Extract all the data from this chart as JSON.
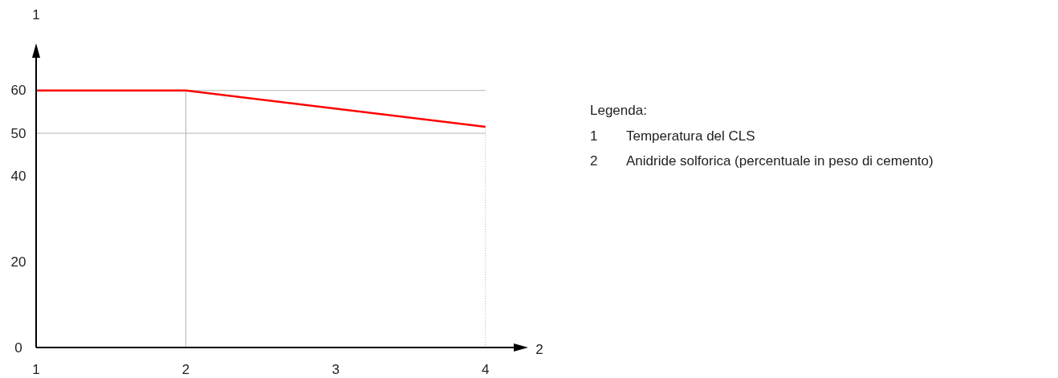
{
  "chart_data": {
    "type": "line",
    "xlabel": "2",
    "ylabel": "1",
    "x": [
      1,
      2,
      4
    ],
    "series": [
      {
        "color": "#ff0000",
        "values": [
          60,
          60,
          51.5
        ]
      }
    ],
    "xlim": [
      1,
      4.2
    ],
    "xticks": [
      1,
      2,
      3,
      4
    ],
    "ylim": [
      0,
      68
    ],
    "yticks": [
      0,
      20,
      40,
      50,
      60
    ],
    "ref_lines": [
      {
        "axis": "y",
        "value": 60,
        "color": "#b4b4b4"
      },
      {
        "axis": "y",
        "value": 50,
        "color": "#b4b4b4"
      },
      {
        "axis": "x",
        "value": 2,
        "color": "#b4b4b4"
      },
      {
        "axis": "x",
        "value": 4,
        "color": "#b4b4b4",
        "line_style": "dotted"
      }
    ],
    "annotations": [
      "Legenda:",
      "1 Temperatura del CLS",
      "2 Anidride solforica (percentuale in peso di cemento)"
    ]
  }
}
